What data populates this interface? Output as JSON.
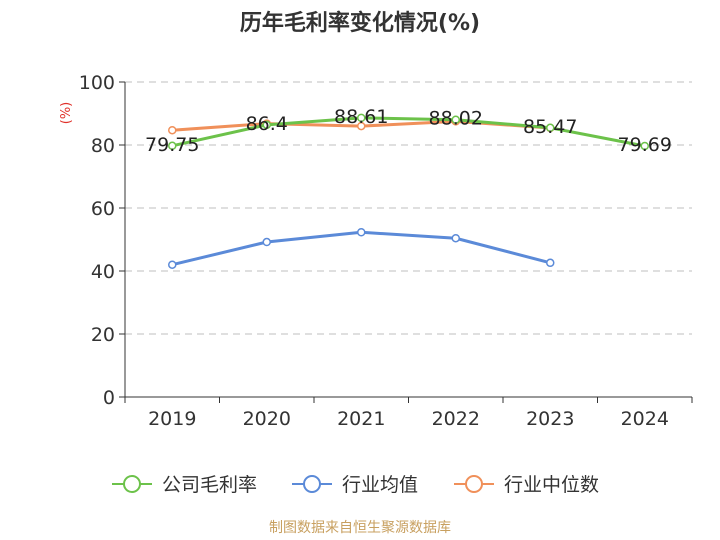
{
  "chart_data": {
    "type": "line",
    "title": "历年毛利率变化情况(%)",
    "ylabel": "(%)",
    "xlabel": "",
    "categories": [
      "2019",
      "2020",
      "2021",
      "2022",
      "2023",
      "2024"
    ],
    "ylim": [
      0,
      100
    ],
    "yticks": [
      "0",
      "20",
      "40",
      "60",
      "80",
      "100"
    ],
    "grid": true,
    "legend_position": "bottom",
    "series": [
      {
        "name": "公司毛利率",
        "color": "#6cc24a",
        "values": [
          79.75,
          86.4,
          88.61,
          88.02,
          85.47,
          79.69
        ],
        "labels": [
          "79.75",
          "86.4",
          "88.61",
          "88.02",
          "85.47",
          "79.69"
        ]
      },
      {
        "name": "行业均值",
        "color": "#5b8ad8",
        "values": [
          42,
          49.2,
          52.3,
          50.4,
          42.6,
          null
        ],
        "labels": []
      },
      {
        "name": "行业中位数",
        "color": "#f0905a",
        "values": [
          84.7,
          86.8,
          86.0,
          87.5,
          85.4,
          null
        ],
        "labels": []
      }
    ],
    "source": "制图数据来自恒生聚源数据库"
  }
}
